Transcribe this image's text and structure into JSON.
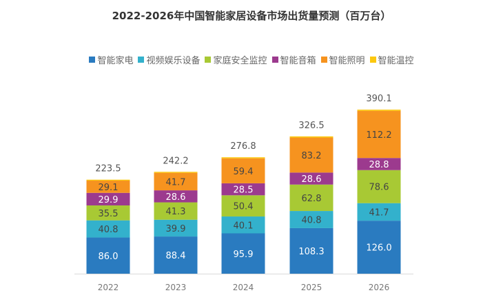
{
  "chart_data": {
    "type": "bar",
    "stacked": true,
    "title": "2022-2026年中国智能家居设备市场出货量预测（百万台）",
    "categories": [
      "2022",
      "2023",
      "2024",
      "2025",
      "2026"
    ],
    "series": [
      {
        "name": "智能家电",
        "color": "#2a7bc0",
        "values": [
          86.0,
          88.4,
          95.9,
          108.3,
          126.0
        ]
      },
      {
        "name": "视频娱乐设备",
        "color": "#33b1cc",
        "values": [
          40.8,
          39.9,
          40.1,
          40.8,
          41.7
        ]
      },
      {
        "name": "家庭安全监控",
        "color": "#a8c934",
        "values": [
          35.5,
          41.3,
          50.4,
          62.8,
          78.6
        ]
      },
      {
        "name": "智能音箱",
        "color": "#9c3a8e",
        "values": [
          29.9,
          28.6,
          28.5,
          28.6,
          28.8
        ]
      },
      {
        "name": "智能照明",
        "color": "#f6931f",
        "values": [
          29.1,
          41.7,
          59.4,
          83.2,
          112.2
        ]
      },
      {
        "name": "智能温控",
        "color": "#fcc80f",
        "values": [
          2.2,
          2.3,
          2.5,
          2.8,
          2.8
        ],
        "labels_shown": false
      }
    ],
    "totals": [
      "223.5",
      "242.2",
      "276.8",
      "326.5",
      "390.1"
    ],
    "legend_position": "top",
    "grid": false
  }
}
